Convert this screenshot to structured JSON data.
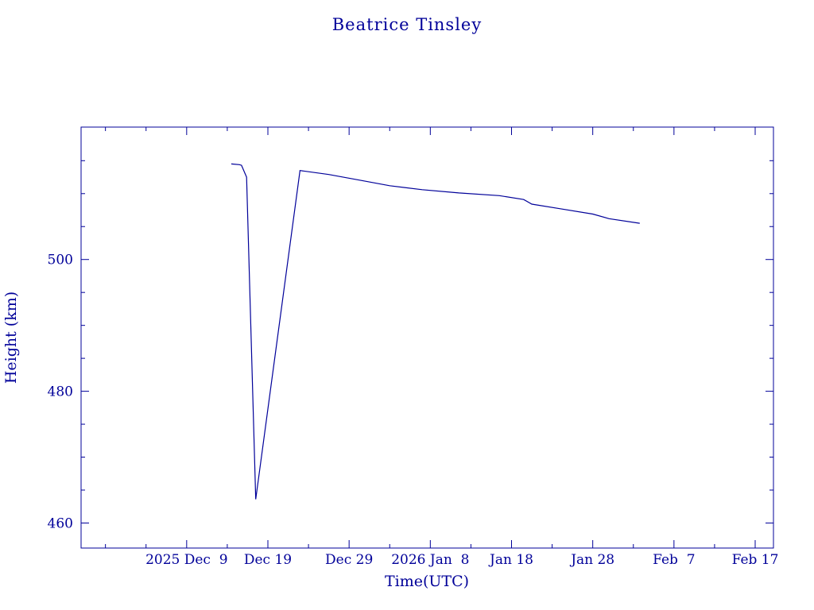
{
  "chart_data": {
    "type": "line",
    "title": "Beatrice Tinsley",
    "xlabel": "Time(UTC)",
    "ylabel": "Height (km)",
    "color": "#000099",
    "x_domain": [
      "2025-11-26T00:00",
      "2026-02-19T06:00"
    ],
    "ylim": [
      456.2,
      520.1
    ],
    "x_ticks": [
      {
        "date": "2025-12-09",
        "label": "2025 Dec  9"
      },
      {
        "date": "2025-12-19",
        "label": "Dec 19"
      },
      {
        "date": "2025-12-29",
        "label": "Dec 29"
      },
      {
        "date": "2026-01-08",
        "label": "2026 Jan  8"
      },
      {
        "date": "2026-01-18",
        "label": "Jan 18"
      },
      {
        "date": "2026-01-28",
        "label": "Jan 28"
      },
      {
        "date": "2026-02-07",
        "label": "Feb  7"
      },
      {
        "date": "2026-02-17",
        "label": "Feb 17"
      }
    ],
    "x_minor_ticks": [
      "2025-11-29",
      "2025-12-04",
      "2025-12-14",
      "2025-12-24",
      "2026-01-03",
      "2026-01-13",
      "2026-01-23",
      "2026-02-02",
      "2026-02-12"
    ],
    "y_ticks": [
      {
        "value": 460,
        "label": "460"
      },
      {
        "value": 480,
        "label": "480"
      },
      {
        "value": 500,
        "label": "500"
      }
    ],
    "y_minor_ticks": [
      465,
      470,
      475,
      485,
      490,
      495,
      505,
      510,
      515
    ],
    "series": [
      {
        "x": [
          "2025-12-14T12:00",
          "2025-12-15T12:00",
          "2025-12-15T18:00",
          "2025-12-16T09:00",
          "2025-12-17T12:00",
          "2025-12-22T23:00",
          "2025-12-26T12:00",
          "2025-12-30T12:00",
          "2026-01-03T00:00",
          "2026-01-07T00:00",
          "2026-01-11T12:00",
          "2026-01-16T12:00",
          "2026-01-19T12:00",
          "2026-01-20T12:00",
          "2026-01-24T00:00",
          "2026-01-28T00:00",
          "2026-01-30T00:00",
          "2026-02-02T19:00"
        ],
        "y": [
          514.5,
          514.4,
          514.3,
          512.5,
          463.6,
          513.5,
          512.9,
          512.0,
          511.2,
          510.6,
          510.1,
          509.7,
          509.1,
          508.4,
          507.7,
          506.9,
          506.2,
          505.5
        ]
      }
    ]
  }
}
